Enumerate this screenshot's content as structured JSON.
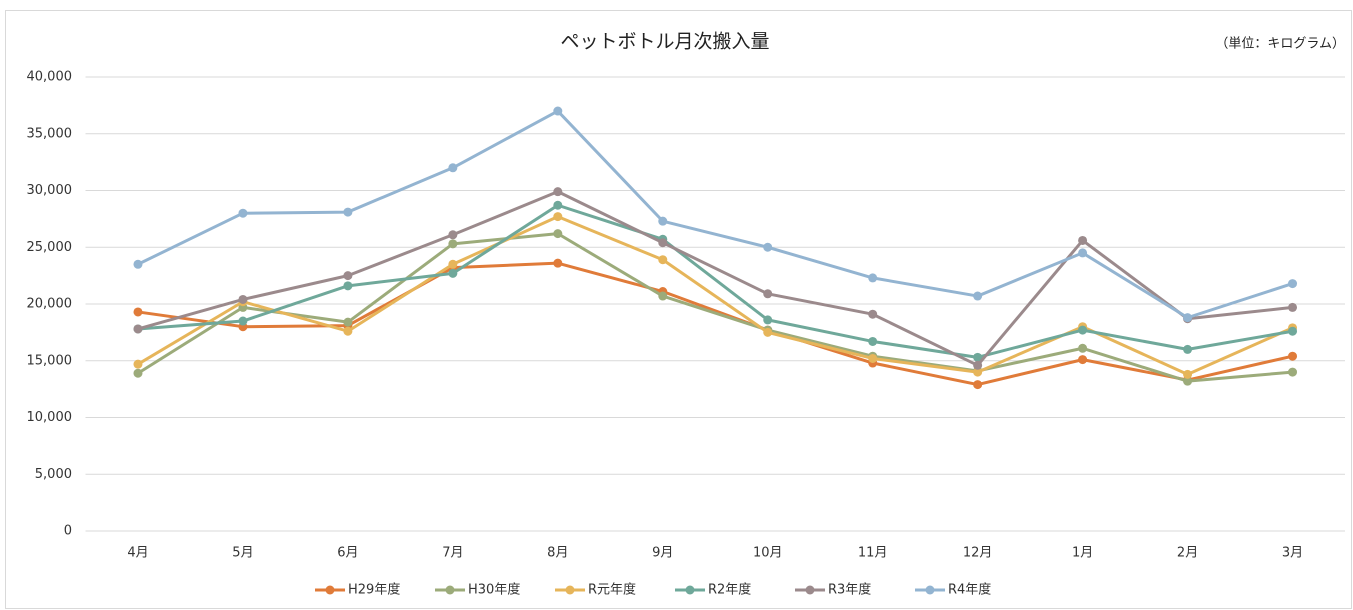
{
  "chart_data": {
    "type": "line",
    "title": "ペットボトル月次搬入量",
    "unit_label": "（単位：キログラム）",
    "categories": [
      "4月",
      "5月",
      "6月",
      "7月",
      "8月",
      "9月",
      "10月",
      "11月",
      "12月",
      "1月",
      "2月",
      "3月"
    ],
    "series": [
      {
        "name": "H29年度",
        "color": "#e07b39",
        "values": [
          19300,
          18000,
          18100,
          23200,
          23600,
          21100,
          17700,
          14800,
          12900,
          15100,
          13300,
          15400
        ]
      },
      {
        "name": "H30年度",
        "color": "#9cab7a",
        "values": [
          13900,
          19700,
          18400,
          25300,
          26200,
          20700,
          17700,
          15400,
          14100,
          16100,
          13200,
          14000
        ]
      },
      {
        "name": "R元年度",
        "color": "#e6b55a",
        "values": [
          14700,
          20200,
          17600,
          23500,
          27700,
          23900,
          17500,
          15200,
          14000,
          18000,
          13800,
          17900
        ]
      },
      {
        "name": "R2年度",
        "color": "#6fa89a",
        "values": [
          17800,
          18500,
          21600,
          22700,
          28700,
          25700,
          18600,
          16700,
          15300,
          17700,
          16000,
          17600
        ]
      },
      {
        "name": "R3年度",
        "color": "#9b8a8c",
        "values": [
          17800,
          20400,
          22500,
          26100,
          29900,
          25400,
          20900,
          19100,
          14600,
          25600,
          18700,
          19700
        ]
      },
      {
        "name": "R4年度",
        "color": "#93b4d1",
        "values": [
          23500,
          28000,
          28100,
          32000,
          37000,
          27300,
          25000,
          22300,
          20700,
          24500,
          18800,
          21800
        ]
      }
    ],
    "ylim": [
      0,
      40000
    ],
    "yticks": [
      0,
      {
        "value": 5000,
        "label": "5,000"
      },
      {
        "value": 10000,
        "label": "10,000"
      },
      {
        "value": 15000,
        "label": "15,000"
      },
      {
        "value": 20000,
        "label": "20,000"
      },
      {
        "value": 25000,
        "label": "25,000"
      },
      {
        "value": 30000,
        "label": "30,000"
      },
      {
        "value": 35000,
        "label": "35,000"
      },
      {
        "value": 40000,
        "label": "40,000"
      }
    ],
    "grid": true,
    "legend": "bottom"
  }
}
